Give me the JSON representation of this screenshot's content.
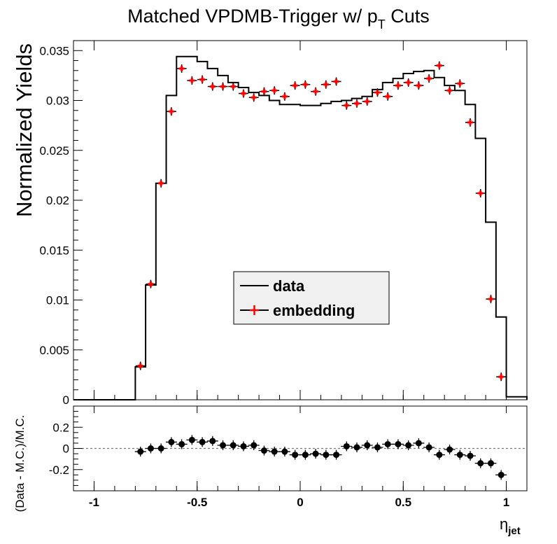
{
  "chart_data": [
    {
      "type": "line",
      "title_main": "Matched VPDMB-Trigger w/ p",
      "title_sub": "T",
      "title_tail": " Cuts",
      "ylabel": "Normalized Yields",
      "xlim": [
        -1.1,
        1.1
      ],
      "ylim": [
        0,
        0.036
      ],
      "yticks": [
        "0",
        "0.005",
        "0.01",
        "0.015",
        "0.02",
        "0.025",
        "0.03",
        "0.035"
      ],
      "ytick_values": [
        0,
        0.005,
        0.01,
        0.015,
        0.02,
        0.025,
        0.03,
        0.035
      ],
      "legend": {
        "placement": "center",
        "entries": [
          "data",
          "embedding"
        ]
      },
      "series": [
        {
          "name": "data",
          "style": "step",
          "color": "#000000",
          "bin_edges": [
            -1.1,
            -0.8,
            -0.75,
            -0.7,
            -0.65,
            -0.6,
            -0.55,
            -0.5,
            -0.45,
            -0.4,
            -0.35,
            -0.3,
            -0.25,
            -0.2,
            -0.15,
            -0.1,
            -0.05,
            0.0,
            0.05,
            0.1,
            0.15,
            0.2,
            0.25,
            0.3,
            0.35,
            0.4,
            0.45,
            0.5,
            0.55,
            0.6,
            0.65,
            0.7,
            0.75,
            0.8,
            0.85,
            0.9,
            0.95,
            1.0,
            1.1
          ],
          "values": [
            0,
            0.0033,
            0.0115,
            0.0217,
            0.0305,
            0.0344,
            0.0344,
            0.0339,
            0.0332,
            0.0325,
            0.0318,
            0.0313,
            0.0308,
            0.0305,
            0.03,
            0.0296,
            0.0296,
            0.0295,
            0.0295,
            0.0297,
            0.0299,
            0.03,
            0.0302,
            0.0304,
            0.0311,
            0.0318,
            0.0322,
            0.0327,
            0.0329,
            0.033,
            0.0323,
            0.0315,
            0.031,
            0.0296,
            0.0262,
            0.0178,
            0.0083,
            0.0003,
            0
          ]
        },
        {
          "name": "embedding",
          "style": "markers",
          "color": "#ff0000",
          "x": [
            -0.775,
            -0.725,
            -0.675,
            -0.625,
            -0.575,
            -0.525,
            -0.475,
            -0.425,
            -0.375,
            -0.325,
            -0.275,
            -0.225,
            -0.175,
            -0.125,
            -0.075,
            -0.025,
            0.025,
            0.075,
            0.125,
            0.175,
            0.225,
            0.275,
            0.325,
            0.375,
            0.425,
            0.475,
            0.525,
            0.575,
            0.625,
            0.675,
            0.725,
            0.775,
            0.825,
            0.875,
            0.925,
            0.975
          ],
          "y": [
            0.0034,
            0.0116,
            0.0217,
            0.0289,
            0.0332,
            0.032,
            0.0321,
            0.0314,
            0.0314,
            0.0314,
            0.0307,
            0.0303,
            0.0309,
            0.031,
            0.0304,
            0.0315,
            0.0316,
            0.0309,
            0.0316,
            0.0319,
            0.0295,
            0.0297,
            0.0299,
            0.0308,
            0.0304,
            0.0315,
            0.0318,
            0.0315,
            0.0322,
            0.0335,
            0.031,
            0.0317,
            0.0278,
            0.0207,
            0.0101,
            0.0023
          ]
        }
      ]
    },
    {
      "type": "scatter",
      "ylabel": "(Data - M.C.)/M.C.",
      "xlabel_main": "η",
      "xlabel_sub": "jet",
      "xlim": [
        -1.1,
        1.1
      ],
      "ylim": [
        -0.4,
        0.4
      ],
      "xticks": [
        "-1",
        "-0.5",
        "0",
        "0.5",
        "1"
      ],
      "xtick_values": [
        -1,
        -0.5,
        0,
        0.5,
        1
      ],
      "yticks": [
        "-0.2",
        "0",
        "0.2"
      ],
      "ytick_values": [
        -0.2,
        0,
        0.2
      ],
      "reference_line": 0,
      "series": [
        {
          "color": "#000000",
          "x": [
            -0.775,
            -0.725,
            -0.675,
            -0.625,
            -0.575,
            -0.525,
            -0.475,
            -0.425,
            -0.375,
            -0.325,
            -0.275,
            -0.225,
            -0.175,
            -0.125,
            -0.075,
            -0.025,
            0.025,
            0.075,
            0.125,
            0.175,
            0.225,
            0.275,
            0.325,
            0.375,
            0.425,
            0.475,
            0.525,
            0.575,
            0.625,
            0.675,
            0.725,
            0.775,
            0.825,
            0.875,
            0.925,
            0.975
          ],
          "y": [
            -0.03,
            0.0,
            0.0,
            0.06,
            0.04,
            0.08,
            0.06,
            0.07,
            0.03,
            0.03,
            0.02,
            0.03,
            -0.02,
            -0.03,
            -0.03,
            -0.06,
            -0.06,
            -0.05,
            -0.06,
            -0.06,
            0.02,
            0.01,
            0.03,
            0.01,
            0.04,
            0.04,
            0.03,
            0.05,
            0.01,
            -0.06,
            -0.01,
            -0.06,
            -0.07,
            -0.14,
            -0.14,
            -0.25
          ]
        }
      ]
    }
  ]
}
